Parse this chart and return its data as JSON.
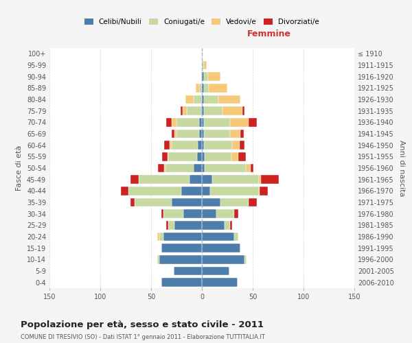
{
  "age_groups": [
    "100+",
    "95-99",
    "90-94",
    "85-89",
    "80-84",
    "75-79",
    "70-74",
    "65-69",
    "60-64",
    "55-59",
    "50-54",
    "45-49",
    "40-44",
    "35-39",
    "30-34",
    "25-29",
    "20-24",
    "15-19",
    "10-14",
    "5-9",
    "0-4"
  ],
  "birth_years": [
    "≤ 1910",
    "1911-1915",
    "1916-1920",
    "1921-1925",
    "1926-1930",
    "1931-1935",
    "1936-1940",
    "1941-1945",
    "1946-1950",
    "1951-1955",
    "1956-1960",
    "1961-1965",
    "1966-1970",
    "1971-1975",
    "1976-1980",
    "1981-1985",
    "1986-1990",
    "1991-1995",
    "1996-2000",
    "2001-2005",
    "2006-2010"
  ],
  "colors": {
    "celibi": "#4d7dab",
    "coniugati": "#c5d9a0",
    "vedovi": "#f5c97a",
    "divorziati": "#cc2222"
  },
  "males": {
    "celibi": [
      0,
      0,
      0,
      0,
      0,
      1,
      3,
      3,
      4,
      5,
      8,
      12,
      20,
      30,
      18,
      27,
      38,
      40,
      42,
      28,
      40
    ],
    "coniugati": [
      0,
      0,
      0,
      3,
      8,
      14,
      22,
      22,
      26,
      28,
      28,
      50,
      52,
      36,
      20,
      6,
      4,
      0,
      2,
      0,
      0
    ],
    "vedovi": [
      0,
      0,
      1,
      3,
      8,
      4,
      5,
      2,
      2,
      1,
      1,
      0,
      0,
      0,
      0,
      0,
      2,
      0,
      0,
      0,
      0
    ],
    "divorziati": [
      0,
      0,
      0,
      0,
      0,
      2,
      5,
      3,
      5,
      5,
      6,
      8,
      8,
      4,
      2,
      2,
      0,
      0,
      0,
      0,
      0
    ]
  },
  "females": {
    "celibi": [
      0,
      0,
      2,
      2,
      2,
      2,
      2,
      2,
      2,
      3,
      3,
      10,
      8,
      18,
      14,
      22,
      32,
      38,
      42,
      27,
      35
    ],
    "coniugati": [
      0,
      2,
      4,
      5,
      14,
      18,
      26,
      26,
      28,
      26,
      40,
      46,
      48,
      28,
      18,
      6,
      4,
      0,
      2,
      0,
      0
    ],
    "vedovi": [
      1,
      3,
      12,
      18,
      22,
      20,
      18,
      10,
      7,
      7,
      5,
      2,
      1,
      0,
      0,
      0,
      0,
      0,
      0,
      0,
      0
    ],
    "divorziati": [
      0,
      0,
      0,
      0,
      0,
      2,
      8,
      3,
      5,
      7,
      3,
      18,
      8,
      8,
      4,
      2,
      0,
      0,
      0,
      0,
      0
    ]
  },
  "xlim": 150,
  "xlabel_right": "Femmine",
  "ylabel_left": "Fasce di età",
  "ylabel_right": "Anni di nascita",
  "title": "Popolazione per età, sesso e stato civile - 2011",
  "subtitle": "COMUNE DI TRESIVIO (SO) - Dati ISTAT 1° gennaio 2011 - Elaborazione TUTTITALIA.IT",
  "legend_labels": [
    "Celibi/Nubili",
    "Coniugati/e",
    "Vedovi/e",
    "Divorziati/e"
  ],
  "bg_color": "#f5f5f5",
  "plot_bg": "#ffffff",
  "grid_color": "#cccccc",
  "dashed_line_color": "#9aafcc"
}
